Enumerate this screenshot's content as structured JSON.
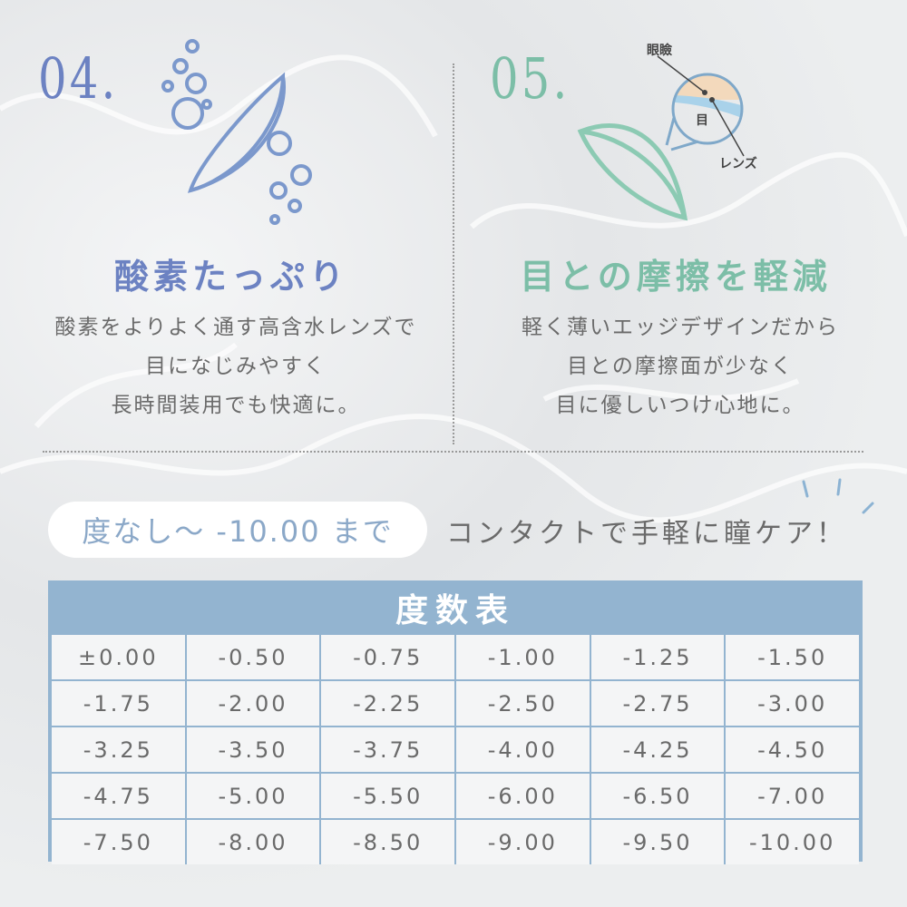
{
  "feature_04": {
    "number": "04.",
    "title": "酸素たっぷり",
    "lines": [
      "酸素をよりよく通す高含水レンズで",
      "目になじみやすく",
      "長時間装用でも快適に。"
    ],
    "color": "#6c82c2",
    "icon": "lens-with-bubbles-icon"
  },
  "feature_05": {
    "number": "05.",
    "title": "目との摩擦を軽減",
    "lines": [
      "軽く薄いエッジデザインだから",
      "目との摩擦面が少なく",
      "目に優しいつけ心地に。"
    ],
    "color": "#7cbea7",
    "icon": "lens-cross-section-icon",
    "diagram_labels": {
      "eyelid": "眼瞼",
      "eye": "目",
      "lens": "レンズ"
    }
  },
  "range_pill": "度なし～ -10.00 まで",
  "tagline": "コンタクトで手軽に瞳ケア！",
  "power_table": {
    "title": "度数表",
    "rows": [
      [
        "±0.00",
        "-0.50",
        "-0.75",
        "-1.00",
        "-1.25",
        "-1.50"
      ],
      [
        "-1.75",
        "-2.00",
        "-2.25",
        "-2.50",
        "-2.75",
        "-3.00"
      ],
      [
        "-3.25",
        "-3.50",
        "-3.75",
        "-4.00",
        "-4.25",
        "-4.50"
      ],
      [
        "-4.75",
        "-5.00",
        "-5.50",
        "-6.00",
        "-6.50",
        "-7.00"
      ],
      [
        "-7.50",
        "-8.00",
        "-8.50",
        "-9.00",
        "-9.50",
        "-10.00"
      ]
    ],
    "header_color": "#93b4d0"
  }
}
